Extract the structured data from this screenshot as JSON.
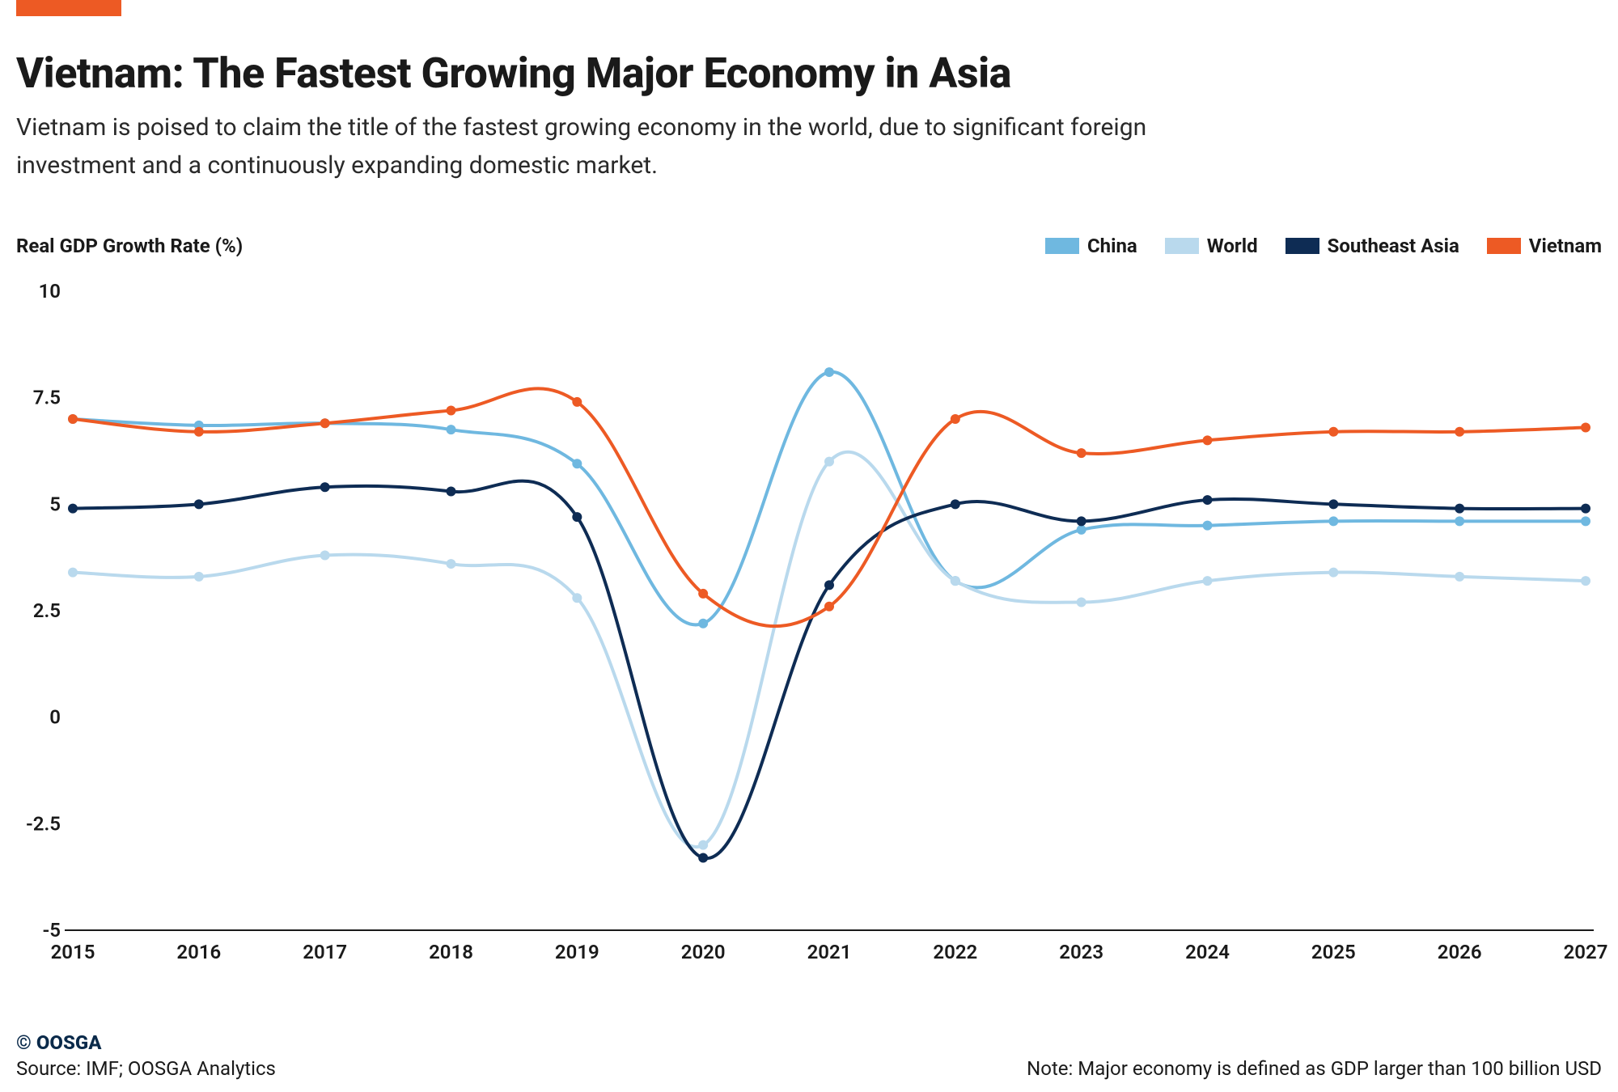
{
  "accent_color": "#ed5a24",
  "title": "Vietnam: The Fastest Growing Major Economy in Asia",
  "subtitle": "Vietnam is poised to claim the title of the fastest growing economy in the world, due to significant foreign investment and a continuously expanding domestic market.",
  "chart": {
    "type": "line",
    "ylabel": "Real GDP Growth Rate (%)",
    "ylim": [
      -5,
      10
    ],
    "ytick_step": 2.5,
    "yticks": [
      "-5",
      "-2.5",
      "0",
      "2.5",
      "5",
      "7.5",
      "10"
    ],
    "xticks": [
      "2015",
      "2016",
      "2017",
      "2018",
      "2019",
      "2020",
      "2021",
      "2022",
      "2023",
      "2024",
      "2025",
      "2026",
      "2027"
    ],
    "background_color": "#ffffff",
    "axis_color": "#1a1a1a",
    "line_width": 4,
    "marker_radius": 6,
    "series": [
      {
        "name": "China",
        "color": "#6fb8e0",
        "values": [
          7.0,
          6.85,
          6.9,
          6.75,
          5.95,
          2.2,
          8.1,
          3.2,
          4.4,
          4.5,
          4.6,
          4.6,
          4.6
        ]
      },
      {
        "name": "World",
        "color": "#b9d9ed",
        "values": [
          3.4,
          3.3,
          3.8,
          3.6,
          2.8,
          -3.0,
          6.0,
          3.2,
          2.7,
          3.2,
          3.4,
          3.3,
          3.2
        ]
      },
      {
        "name": "Southeast Asia",
        "color": "#0e2c54",
        "values": [
          4.9,
          5.0,
          5.4,
          5.3,
          4.7,
          -3.3,
          3.1,
          5.0,
          4.6,
          5.1,
          5.0,
          4.9,
          4.9
        ]
      },
      {
        "name": "Vietnam",
        "color": "#ed5a24",
        "values": [
          7.0,
          6.7,
          6.9,
          7.2,
          7.4,
          2.9,
          2.6,
          7.0,
          6.2,
          6.5,
          6.7,
          6.7,
          6.8
        ]
      }
    ]
  },
  "footer": {
    "copyright": "© OOSGA",
    "source": "Source: IMF; OOSGA Analytics",
    "note": "Note: Major economy is defined as GDP larger than 100 billion USD"
  }
}
